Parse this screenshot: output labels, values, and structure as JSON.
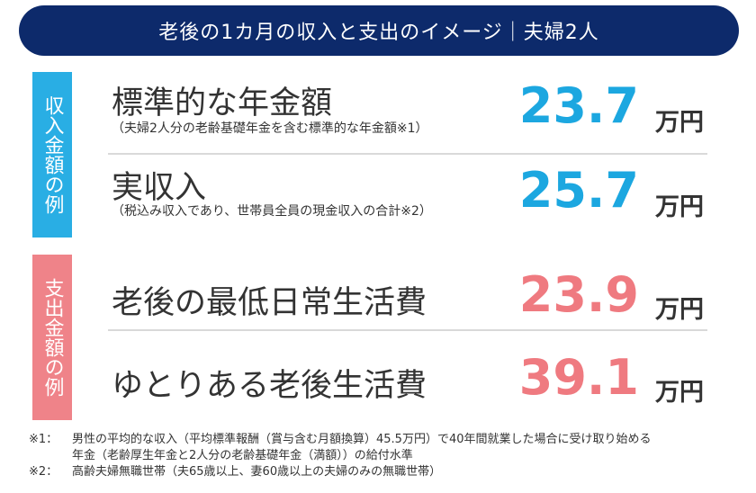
{
  "banner": {
    "title": "老後の1カ月の収入と支出のイメージ｜夫婦2人"
  },
  "income_label": "収入金額の例",
  "expense_label": "支出金額の例",
  "rows": [
    {
      "title": "標準的な年金額",
      "sub": "（夫婦2人分の老齢基礎年金を含む標準的な年金額※1）",
      "value": "23.7",
      "unit": "万円"
    },
    {
      "title": "実収入",
      "sub": "（税込み収入であり、世帯員全員の現金収入の合計※2）",
      "value": "25.7",
      "unit": "万円"
    },
    {
      "title": "老後の最低日常生活費",
      "sub": "",
      "value": "23.9",
      "unit": "万円"
    },
    {
      "title": "ゆとりある老後生活費",
      "sub": "",
      "value": "39.1",
      "unit": "万円"
    }
  ],
  "notes": [
    {
      "mark": "※1：",
      "lines": [
        "男性の平均的な収入（平均標準報酬（賞与含む月額換算）45.5万円）で40年間就業した場合に受け取り始める",
        "年金（老齢厚生年金と2人分の老齢基礎年金（満額））の給付水準"
      ]
    },
    {
      "mark": "※2：",
      "lines": [
        "高齢夫婦無職世帯（夫65歳以上、妻60歳以上の夫婦のみの無職世帯）"
      ]
    }
  ],
  "colors": {
    "banner": "#0d2a6b",
    "income": "#29aee4",
    "expense": "#ef8389",
    "income_value": "#1ca7e0",
    "expense_value": "#ef7a80"
  }
}
